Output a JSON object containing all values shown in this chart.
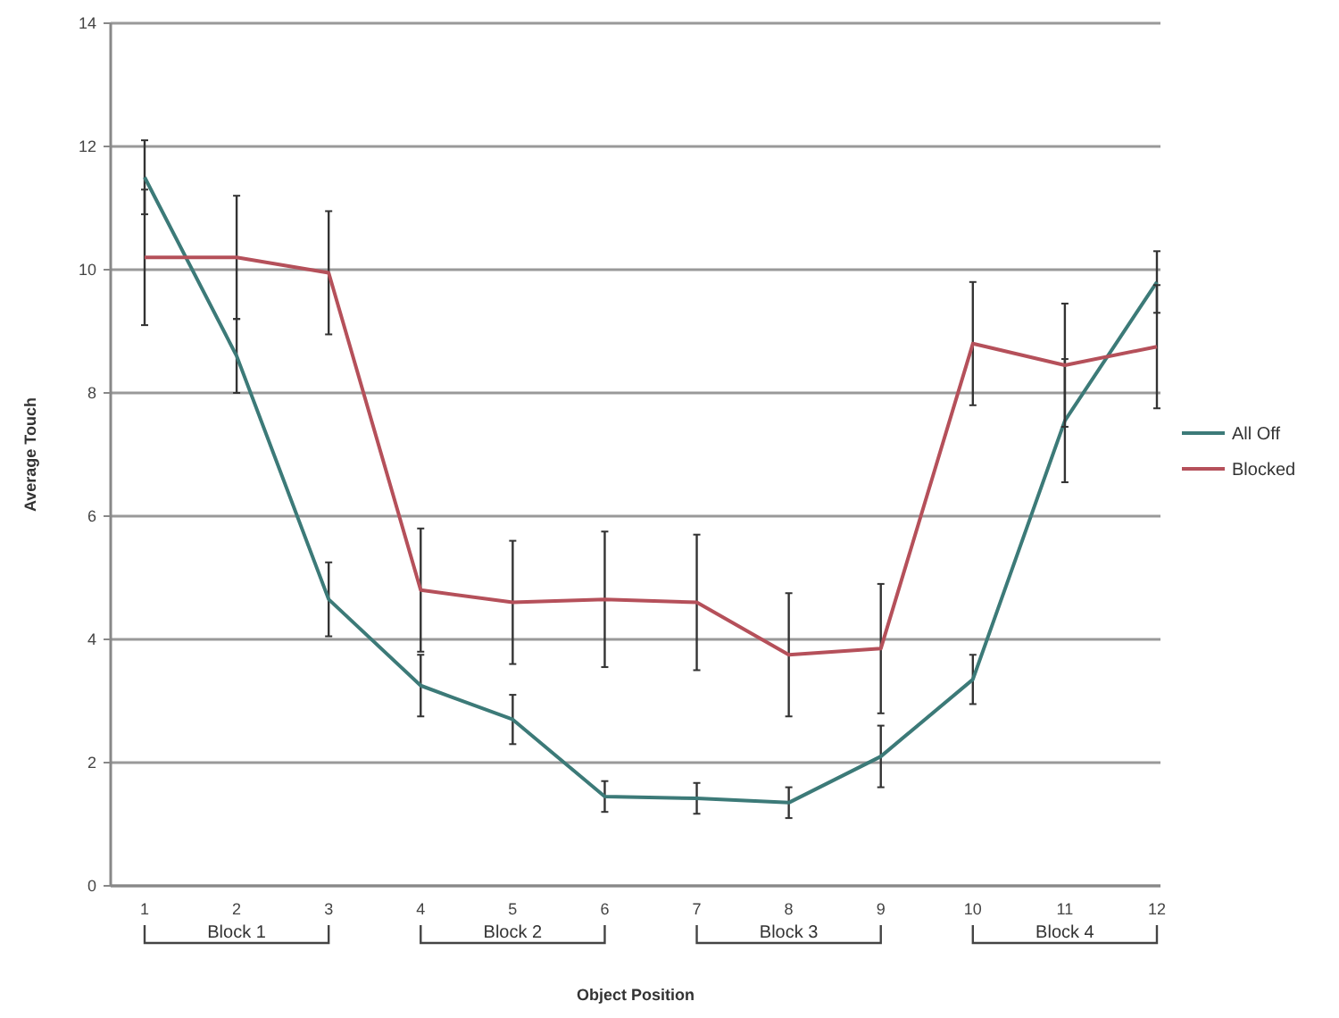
{
  "chart_data": {
    "type": "line",
    "xlabel": "Object Position",
    "ylabel": "Average Touch",
    "categories": [
      "1",
      "2",
      "3",
      "4",
      "5",
      "6",
      "7",
      "8",
      "9",
      "10",
      "11",
      "12"
    ],
    "series": [
      {
        "name": "All Off",
        "color": "#3c7a78",
        "values": [
          11.5,
          8.6,
          4.65,
          3.25,
          2.7,
          1.45,
          1.42,
          1.35,
          2.1,
          3.35,
          7.55,
          9.8
        ],
        "errors": [
          0.6,
          0.6,
          0.6,
          0.5,
          0.4,
          0.25,
          0.25,
          0.25,
          0.5,
          0.4,
          1.0,
          0.5
        ]
      },
      {
        "name": "Blocked",
        "color": "#b5505a",
        "values": [
          10.2,
          10.2,
          9.95,
          4.8,
          4.6,
          4.65,
          4.6,
          3.75,
          3.85,
          8.8,
          8.45,
          8.75
        ],
        "errors": [
          1.1,
          1.0,
          1.0,
          1.0,
          1.0,
          1.1,
          1.1,
          1.0,
          1.05,
          1.0,
          1.0,
          1.0
        ]
      }
    ],
    "ylim": [
      0,
      14
    ],
    "yticks": [
      0,
      2,
      4,
      6,
      8,
      10,
      12,
      14
    ],
    "grid": "y",
    "legend": "right",
    "marker": "none",
    "line_style": "solid",
    "annotations": [
      "Block 1",
      "Block 2",
      "Block 3",
      "Block 4"
    ]
  }
}
